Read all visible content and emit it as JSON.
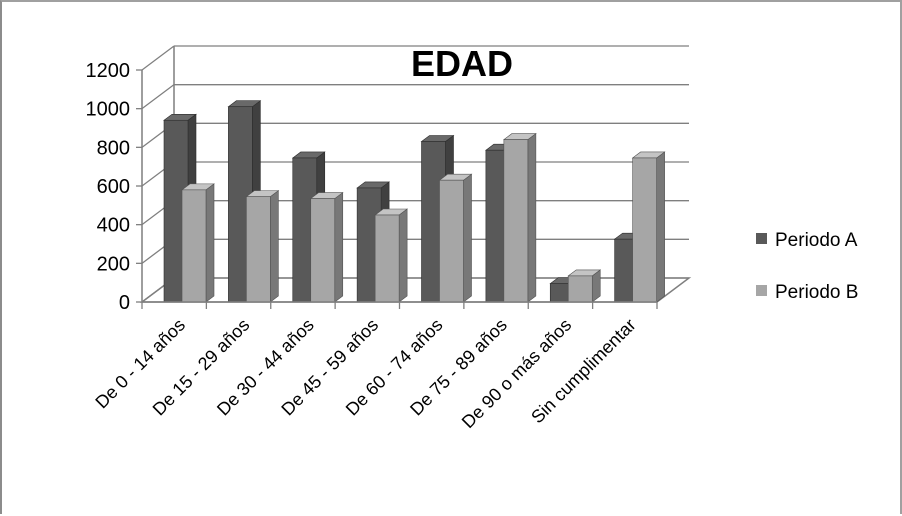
{
  "chart_data": {
    "type": "bar",
    "title": "EDAD",
    "categories": [
      "De 0 - 14 años",
      "De 15 - 29 años",
      "De 30 - 44 años",
      "De 45 - 59 años",
      "De 60 - 74 años",
      "De 75 - 89 años",
      "De 90 o más años",
      "Sin cumplimentar"
    ],
    "series": [
      {
        "name": "Periodo A",
        "values": [
          940,
          1010,
          745,
          590,
          830,
          785,
          95,
          325
        ]
      },
      {
        "name": "Periodo B",
        "values": [
          580,
          545,
          535,
          450,
          630,
          840,
          135,
          745
        ]
      }
    ],
    "yticks": [
      "0",
      "200",
      "400",
      "600",
      "800",
      "1000",
      "1200"
    ],
    "ylim": [
      0,
      1200
    ],
    "grid": true,
    "legend": "right",
    "colors": {
      "Periodo A": "#595959",
      "Periodo B": "#a6a6a6"
    }
  }
}
